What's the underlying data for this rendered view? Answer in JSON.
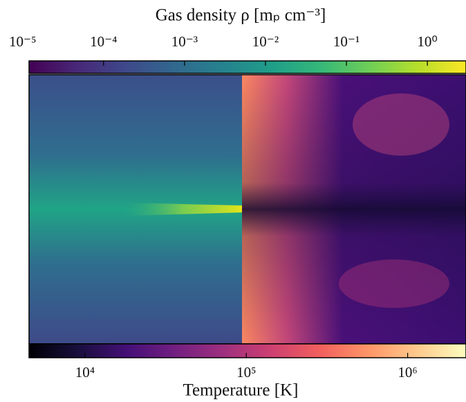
{
  "chart_data": [
    {
      "type": "colorbar",
      "position": "top",
      "xlabel": "Gas density ρ [mₚ cm⁻³]",
      "colormap": "viridis",
      "log": true,
      "xlim": [
        1.2e-05,
        3
      ],
      "xticks": [
        {
          "value": 1e-05,
          "label": "10⁻⁵"
        },
        {
          "value": 0.0001,
          "label": "10⁻⁴"
        },
        {
          "value": 0.001,
          "label": "10⁻³"
        },
        {
          "value": 0.01,
          "label": "10⁻²"
        },
        {
          "value": 0.1,
          "label": "10⁻¹"
        },
        {
          "value": 1,
          "label": "10⁰"
        }
      ]
    },
    {
      "type": "colorbar",
      "position": "bottom",
      "xlabel": "Temperature [K]",
      "colormap": "magma",
      "log": true,
      "xlim": [
        4500,
        2300000
      ],
      "xticks": [
        {
          "value": 10000,
          "label": "10⁴"
        },
        {
          "value": 100000,
          "label": "10⁵"
        },
        {
          "value": 1000000,
          "label": "10⁶"
        }
      ]
    }
  ]
}
